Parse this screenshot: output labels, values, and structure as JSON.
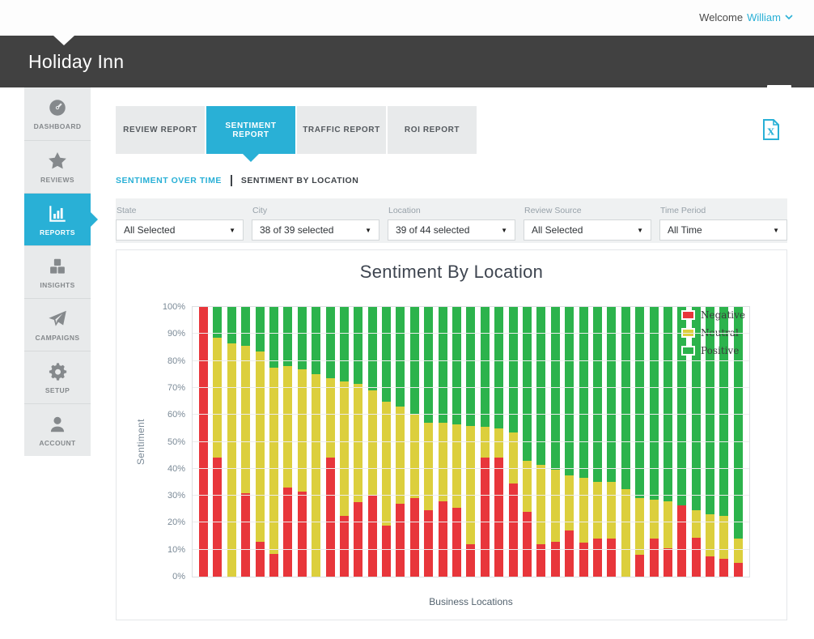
{
  "topbar": {
    "welcome": "Welcome",
    "username": "William"
  },
  "header": {
    "title": "Holiday Inn"
  },
  "sidebar": {
    "items": [
      {
        "label": "DASHBOARD",
        "icon": "gauge-icon",
        "active": false
      },
      {
        "label": "REVIEWS",
        "icon": "star-icon",
        "active": false
      },
      {
        "label": "REPORTS",
        "icon": "bar-chart-icon",
        "active": true
      },
      {
        "label": "INSIGHTS",
        "icon": "cubes-icon",
        "active": false
      },
      {
        "label": "CAMPAIGNS",
        "icon": "paper-plane-icon",
        "active": false
      },
      {
        "label": "SETUP",
        "icon": "gear-icon",
        "active": false
      },
      {
        "label": "ACCOUNT",
        "icon": "person-icon",
        "active": false
      }
    ]
  },
  "tabs": {
    "items": [
      {
        "label": "REVIEW REPORT",
        "active": false
      },
      {
        "label": "SENTIMENT REPORT",
        "active": true
      },
      {
        "label": "TRAFFIC REPORT",
        "active": false
      },
      {
        "label": "ROI REPORT",
        "active": false
      }
    ]
  },
  "subnav": {
    "items": [
      {
        "label": "SENTIMENT OVER TIME"
      },
      {
        "label": "SENTIMENT BY LOCATION"
      }
    ]
  },
  "filters": {
    "items": [
      {
        "label": "State",
        "value": "All Selected"
      },
      {
        "label": "City",
        "value": "38 of 39 selected"
      },
      {
        "label": "Location",
        "value": "39 of 44 selected"
      },
      {
        "label": "Review Source",
        "value": "All Selected"
      },
      {
        "label": "Time Period",
        "value": "All Time"
      }
    ]
  },
  "chart_data": {
    "type": "bar",
    "subtype": "stacked-percentage",
    "title": "Sentiment By Location",
    "xlabel": "Business Locations",
    "ylabel": "Sentiment",
    "ylim": [
      0,
      100
    ],
    "y_ticks": [
      "0%",
      "10%",
      "20%",
      "30%",
      "40%",
      "50%",
      "60%",
      "70%",
      "80%",
      "90%",
      "100%"
    ],
    "grid": true,
    "legend_position": "top-right",
    "bar_count": 39,
    "series": [
      {
        "name": "Negative",
        "color": "#e8363b",
        "values": [
          100,
          44,
          0,
          31,
          13,
          8.5,
          33,
          31.5,
          0,
          44,
          22.5,
          27.5,
          30,
          19,
          27,
          29,
          24.5,
          28,
          25.5,
          12,
          44,
          44,
          34.5,
          24,
          12,
          13,
          17,
          12.5,
          14,
          14,
          0,
          8,
          14,
          10.5,
          26.5,
          14.5,
          7.5,
          6.5,
          5
        ]
      },
      {
        "name": "Neutral",
        "color": "#dccf3d",
        "values": [
          0,
          44.5,
          86.5,
          54.5,
          70.5,
          69,
          45,
          45.5,
          75,
          29.5,
          50,
          44,
          39,
          46,
          36,
          31.5,
          32.5,
          29,
          31,
          44,
          11.5,
          11,
          19,
          19,
          29.5,
          26.5,
          20.5,
          24,
          21,
          21,
          32.5,
          21,
          14.5,
          17.5,
          0,
          10,
          15.5,
          16,
          9
        ]
      },
      {
        "name": "Positive",
        "color": "#2cb34c",
        "values": [
          0,
          11.5,
          13.5,
          14.5,
          16.5,
          22.5,
          22,
          23,
          25,
          26.5,
          27.5,
          28.5,
          31,
          35,
          37,
          39.5,
          43,
          43,
          43.5,
          44,
          44.5,
          45,
          46.5,
          57,
          58.5,
          60.5,
          62.5,
          63.5,
          65,
          65,
          67.5,
          71,
          71.5,
          72,
          73.5,
          75.5,
          77,
          77.5,
          86
        ]
      }
    ]
  },
  "colors": {
    "accent": "#29b0d6",
    "header_bg": "#414141",
    "negative": "#e8363b",
    "neutral": "#dccf3d",
    "positive": "#2cb34c"
  }
}
